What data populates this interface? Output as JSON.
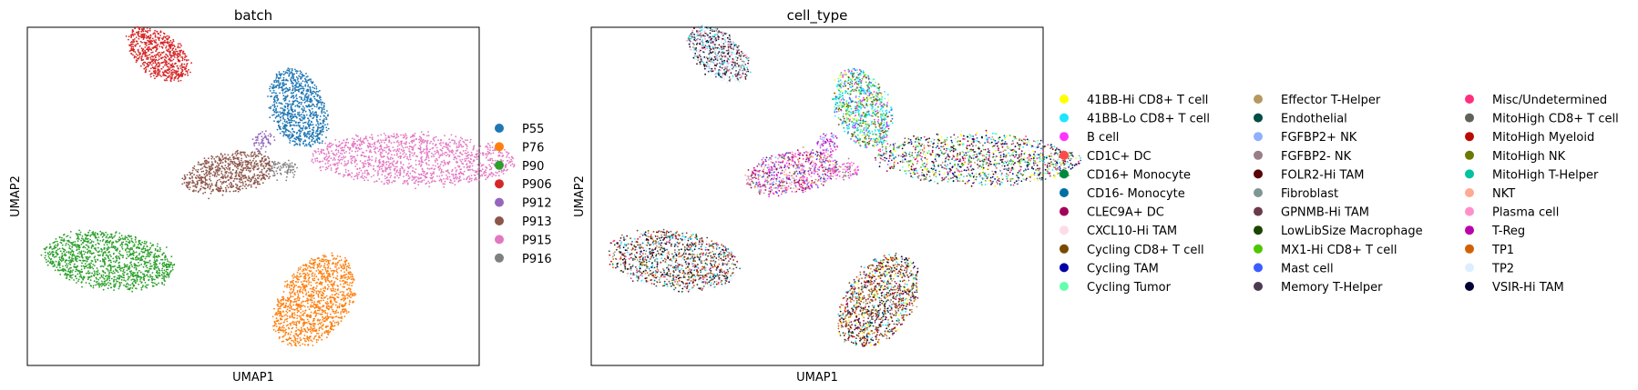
{
  "chart_data": [
    {
      "type": "scatter",
      "title": "batch",
      "xlabel": "UMAP1",
      "ylabel": "UMAP2",
      "grid": false,
      "legend_position": "right",
      "legend": [
        {
          "name": "P55",
          "color": "#1f77b4"
        },
        {
          "name": "P76",
          "color": "#ff7f0e"
        },
        {
          "name": "P90",
          "color": "#2ca02c"
        },
        {
          "name": "P906",
          "color": "#d62728"
        },
        {
          "name": "P912",
          "color": "#9467bd"
        },
        {
          "name": "P913",
          "color": "#8c564b"
        },
        {
          "name": "P915",
          "color": "#e377c2"
        },
        {
          "name": "P916",
          "color": "#7f7f7f"
        }
      ],
      "clusters": [
        {
          "series": "P906",
          "x": 2.7,
          "y": 8.2,
          "rx": 0.55,
          "ry": 0.95,
          "rot": 40,
          "n": 700
        },
        {
          "series": "P55",
          "x": 6.1,
          "y": 6.6,
          "rx": 0.65,
          "ry": 1.2,
          "rot": 15,
          "n": 900
        },
        {
          "series": "P915",
          "x": 8.9,
          "y": 5.1,
          "rx": 2.5,
          "ry": 0.75,
          "rot": -2,
          "n": 1300
        },
        {
          "series": "P913",
          "x": 4.4,
          "y": 4.7,
          "rx": 1.15,
          "ry": 0.6,
          "rot": 15,
          "n": 700
        },
        {
          "series": "P912",
          "x": 5.25,
          "y": 5.6,
          "rx": 0.25,
          "ry": 0.3,
          "rot": 0,
          "n": 60
        },
        {
          "series": "P916",
          "x": 5.7,
          "y": 4.8,
          "rx": 0.35,
          "ry": 0.25,
          "rot": 0,
          "n": 80
        },
        {
          "series": "P90",
          "x": 1.5,
          "y": 2.1,
          "rx": 1.6,
          "ry": 0.85,
          "rot": -10,
          "n": 1300
        },
        {
          "series": "P76",
          "x": 6.5,
          "y": 0.9,
          "rx": 0.85,
          "ry": 1.45,
          "rot": -25,
          "n": 1200
        }
      ],
      "xlim": [
        -0.5,
        10.5
      ],
      "ylim": [
        -1.0,
        9.0
      ]
    },
    {
      "type": "scatter",
      "title": "cell_type",
      "xlabel": "UMAP1",
      "ylabel": "UMAP2",
      "grid": false,
      "legend_position": "right",
      "legend": [
        {
          "name": "41BB-Hi CD8+ T cell",
          "color": "#ffff00"
        },
        {
          "name": "41BB-Lo CD8+ T cell",
          "color": "#1ce6ff"
        },
        {
          "name": "B cell",
          "color": "#ff34ff"
        },
        {
          "name": "CD1C+ DC",
          "color": "#ff4a46"
        },
        {
          "name": "CD16+ Monocyte",
          "color": "#008941"
        },
        {
          "name": "CD16- Monocyte",
          "color": "#006fa6"
        },
        {
          "name": "CLEC9A+ DC",
          "color": "#a30059"
        },
        {
          "name": "CXCL10-Hi TAM",
          "color": "#ffdbe5"
        },
        {
          "name": "Cycling CD8+ T cell",
          "color": "#7a4900"
        },
        {
          "name": "Cycling TAM",
          "color": "#0000a6"
        },
        {
          "name": "Cycling Tumor",
          "color": "#63ffac"
        },
        {
          "name": "Effector T-Helper",
          "color": "#b79762"
        },
        {
          "name": "Endothelial",
          "color": "#004d43"
        },
        {
          "name": "FGFBP2+ NK",
          "color": "#8fb0ff"
        },
        {
          "name": "FGFBP2- NK",
          "color": "#997d87"
        },
        {
          "name": "FOLR2-Hi TAM",
          "color": "#5a0007"
        },
        {
          "name": "Fibroblast",
          "color": "#809693"
        },
        {
          "name": "GPNMB-Hi TAM",
          "color": "#6a3a4c"
        },
        {
          "name": "LowLibSize Macrophage",
          "color": "#1b4400"
        },
        {
          "name": "MX1-Hi CD8+ T cell",
          "color": "#4fc601"
        },
        {
          "name": "Mast cell",
          "color": "#3b5dff"
        },
        {
          "name": "Memory T-Helper",
          "color": "#4a3b53"
        },
        {
          "name": "Misc/Undetermined",
          "color": "#ff2f80"
        },
        {
          "name": "MitoHigh CD8+ T cell",
          "color": "#61615a"
        },
        {
          "name": "MitoHigh Myeloid",
          "color": "#ba0900"
        },
        {
          "name": "MitoHigh NK",
          "color": "#6b7900"
        },
        {
          "name": "MitoHigh T-Helper",
          "color": "#00c2a0"
        },
        {
          "name": "NKT",
          "color": "#ffaa92"
        },
        {
          "name": "Plasma cell",
          "color": "#ff90c9"
        },
        {
          "name": "T-Reg",
          "color": "#b903aa"
        },
        {
          "name": "TP1",
          "color": "#d16100"
        },
        {
          "name": "TP2",
          "color": "#ddefff"
        },
        {
          "name": "VSIR-Hi TAM",
          "color": "#000035"
        }
      ],
      "clusters": [
        {
          "x": 2.6,
          "y": 8.2,
          "rx": 0.55,
          "ry": 0.95,
          "rot": 40,
          "n": 700,
          "mix": [
            "#ddefff",
            "#ddefff",
            "#4a3b53",
            "#61615a",
            "#000035",
            "#1ce6ff",
            "#809693",
            "#ff90c9",
            "#5a0007",
            "#ddefff"
          ]
        },
        {
          "x": 6.1,
          "y": 6.6,
          "rx": 0.65,
          "ry": 1.2,
          "rot": 15,
          "n": 900,
          "mix": [
            "#1ce6ff",
            "#63ffac",
            "#ffff00",
            "#4fc601",
            "#00c2a0",
            "#1ce6ff",
            "#6b7900",
            "#3b5dff",
            "#ff34ff",
            "#1ce6ff",
            "#ddefff",
            "#7a4900"
          ]
        },
        {
          "x": 8.9,
          "y": 5.1,
          "rx": 2.5,
          "ry": 0.75,
          "rot": -2,
          "n": 1300,
          "mix": [
            "#ddefff",
            "#006fa6",
            "#000035",
            "#5a0007",
            "#1ce6ff",
            "#ffff00",
            "#63ffac",
            "#b79762",
            "#0000a6",
            "#a30059",
            "#ff2f80",
            "#4fc601",
            "#809693",
            "#61615a"
          ]
        },
        {
          "x": 4.4,
          "y": 4.7,
          "rx": 1.15,
          "ry": 0.6,
          "rot": 15,
          "n": 700,
          "mix": [
            "#ff34ff",
            "#b903aa",
            "#8fb0ff",
            "#ff90c9",
            "#a30059",
            "#b79762",
            "#ffaa92",
            "#ff2f80",
            "#3b5dff",
            "#61615a"
          ]
        },
        {
          "x": 5.25,
          "y": 5.6,
          "rx": 0.25,
          "ry": 0.3,
          "rot": 0,
          "n": 60,
          "mix": [
            "#ff34ff",
            "#8fb0ff",
            "#b903aa"
          ]
        },
        {
          "x": 5.7,
          "y": 4.8,
          "rx": 0.35,
          "ry": 0.25,
          "rot": 0,
          "n": 80,
          "mix": [
            "#ff34ff",
            "#ff90c9",
            "#997d87"
          ]
        },
        {
          "x": 1.5,
          "y": 2.1,
          "rx": 1.6,
          "ry": 0.85,
          "rot": -10,
          "n": 1300,
          "mix": [
            "#ddefff",
            "#ddefff",
            "#ddefff",
            "#1ce6ff",
            "#4a3b53",
            "#5a0007",
            "#7a4900",
            "#006fa6",
            "#ba0900",
            "#61615a",
            "#1b4400",
            "#000035",
            "#b79762",
            "#ff2f80",
            "#d16100"
          ]
        },
        {
          "x": 6.5,
          "y": 0.9,
          "rx": 0.85,
          "ry": 1.45,
          "rot": -25,
          "n": 1200,
          "mix": [
            "#d16100",
            "#d16100",
            "#7a4900",
            "#000035",
            "#5a0007",
            "#ffff00",
            "#1ce6ff",
            "#61615a",
            "#6a3a4c",
            "#b79762",
            "#004d43",
            "#a30059",
            "#ba0900",
            "#ddefff"
          ]
        }
      ],
      "xlim": [
        -0.5,
        10.5
      ],
      "ylim": [
        -1.0,
        9.0
      ]
    }
  ]
}
